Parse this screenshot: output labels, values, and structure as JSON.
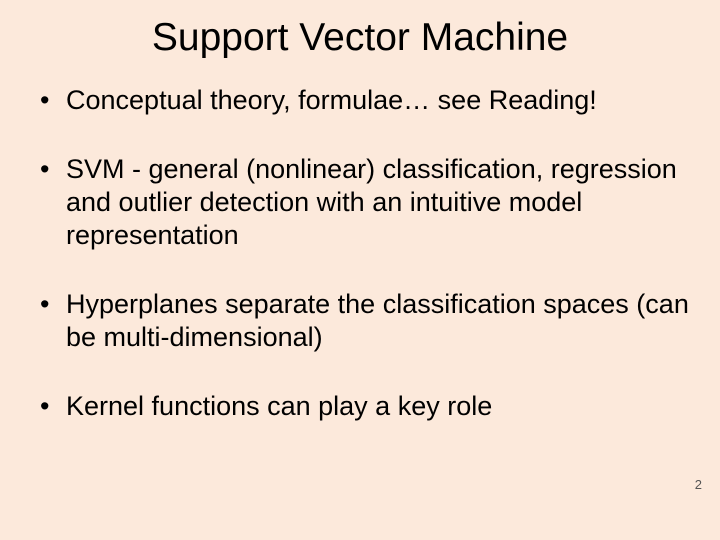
{
  "slide": {
    "title": "Support Vector Machine",
    "bullets": [
      "Conceptual theory, formulae… see Reading!",
      "SVM -  general (nonlinear) classification, regression and outlier detection with an intuitive model representation",
      "Hyperplanes separate the classification spaces (can be multi-dimensional)",
      "Kernel functions can play a key role"
    ],
    "page_number": "2",
    "background_color": "#fce9db",
    "text_color": "#000000",
    "title_fontsize": 39,
    "body_fontsize": 27,
    "font_family": "Arial"
  }
}
